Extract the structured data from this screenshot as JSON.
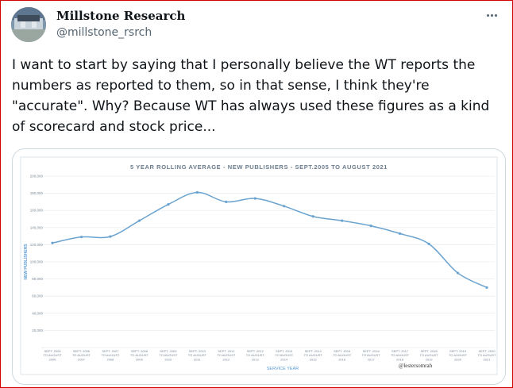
{
  "tweet": {
    "display_name": "Millstone Research",
    "handle": "@millstone_rsrch",
    "text": "I want to start by saying that I personally believe the WT reports the numbers as reported to them, so in that sense, I think they're \"accurate\". Why? Because WT has always used these figures as a kind of scorecard and stock price...",
    "more_icon": "more-horizontal-icon",
    "avatar_icon": "avatar-photo"
  },
  "colors": {
    "line": "#6aa3cf",
    "chart_title": "#6b7c8c",
    "axis_label": "#5b9bd5",
    "tick": "#7a8a99",
    "grid": "#e6eaee",
    "border": "#cfd9de"
  },
  "chart_data": {
    "type": "line",
    "title": "5 YEAR ROLLING AVERAGE - NEW PUBLISHERS - SEPT.2005 TO AUGUST 2021",
    "xlabel": "SERVICE YEAR",
    "ylabel": "NEW PUBLISHERS",
    "ylim": [
      0,
      200000
    ],
    "yticks": [
      "-",
      "20,000",
      "40,000",
      "60,000",
      "80,000",
      "100,000",
      "120,000",
      "140,000",
      "160,000",
      "180,000",
      "200,000"
    ],
    "categories": [
      [
        "SEPT. 2005",
        "TO AUGUST",
        "2006"
      ],
      [
        "SEPT. 2006",
        "TO AUGUST",
        "2007"
      ],
      [
        "SEPT. 2007",
        "TO AUGUST",
        "2008"
      ],
      [
        "SEPT. 2008",
        "TO AUGUST",
        "2009"
      ],
      [
        "SEPT. 2009",
        "TO AUGUST",
        "2010"
      ],
      [
        "SEPT. 2010",
        "TO AUGUST",
        "2011"
      ],
      [
        "SEPT. 2011",
        "TO AUGUST",
        "2012"
      ],
      [
        "SEPT. 2012",
        "TO AUGUST",
        "2013"
      ],
      [
        "SEPT. 2013",
        "TO AUGUST",
        "2014"
      ],
      [
        "SEPT. 2014",
        "TO AUGUST",
        "2015"
      ],
      [
        "SEPT. 2015",
        "TO AUGUST",
        "2016"
      ],
      [
        "SEPT. 2016",
        "TO AUGUST",
        "2017"
      ],
      [
        "SEPT. 2017",
        "TO AUGUST",
        "2018"
      ],
      [
        "SEPT. 2018",
        "TO AUGUST",
        "2019"
      ],
      [
        "SEPT. 2019",
        "TO AUGUST",
        "2020"
      ],
      [
        "SEPT. 2020",
        "TO AUGUST",
        "2021"
      ]
    ],
    "values": [
      122000,
      129000,
      129500,
      148000,
      167000,
      181000,
      170000,
      174000,
      165000,
      153000,
      148000,
      142000,
      133000,
      121000,
      87000,
      70000
    ],
    "watermark": "@lestersomrah",
    "grid": true
  }
}
